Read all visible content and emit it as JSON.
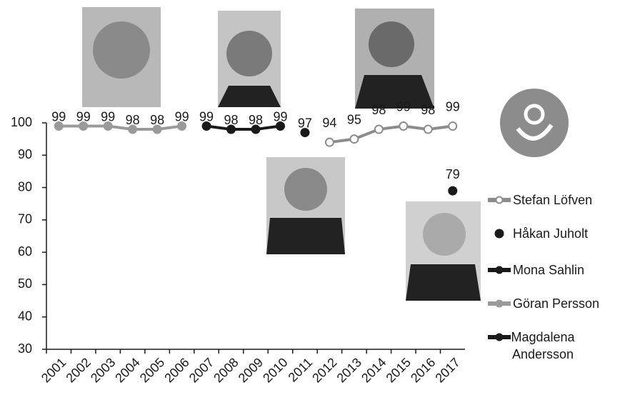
{
  "chart_data": {
    "type": "line",
    "categories": [
      "2001",
      "2002",
      "2003",
      "2004",
      "2005",
      "2006",
      "2007",
      "2008",
      "2009",
      "2010",
      "2011",
      "2012",
      "2013",
      "2014",
      "2015",
      "2016",
      "2017"
    ],
    "ylim": [
      30,
      100
    ],
    "yticks": [
      30,
      40,
      50,
      60,
      70,
      80,
      90,
      100
    ],
    "series": [
      {
        "name": "Stefan Löfven",
        "color": "#8c8c8c",
        "marker": "open",
        "line": true,
        "values": [
          null,
          null,
          null,
          null,
          null,
          null,
          null,
          null,
          null,
          null,
          null,
          94,
          95,
          98,
          99,
          98,
          99
        ]
      },
      {
        "name": "Håkan Juholt",
        "color": "#1a1a1a",
        "marker": "filled",
        "line": false,
        "values": [
          null,
          null,
          null,
          null,
          null,
          null,
          null,
          null,
          null,
          null,
          97,
          null,
          null,
          null,
          null,
          null,
          null
        ]
      },
      {
        "name": "Mona Sahlin",
        "color": "#1a1a1a",
        "marker": "filled",
        "line": true,
        "values": [
          null,
          null,
          null,
          null,
          null,
          null,
          99,
          98,
          98,
          99,
          null,
          null,
          null,
          null,
          null,
          null,
          null
        ]
      },
      {
        "name": "Göran Persson",
        "color": "#9a9a9a",
        "marker": "filled",
        "line": true,
        "values": [
          99,
          99,
          99,
          98,
          98,
          99,
          null,
          null,
          null,
          null,
          null,
          null,
          null,
          null,
          null,
          null,
          null
        ]
      },
      {
        "name": "Magdalena Andersson",
        "color": "#1a1a1a",
        "marker": "filled",
        "line": true,
        "values": [
          null,
          null,
          null,
          null,
          null,
          null,
          null,
          null,
          null,
          null,
          null,
          null,
          null,
          null,
          null,
          null,
          79
        ]
      }
    ]
  }
}
